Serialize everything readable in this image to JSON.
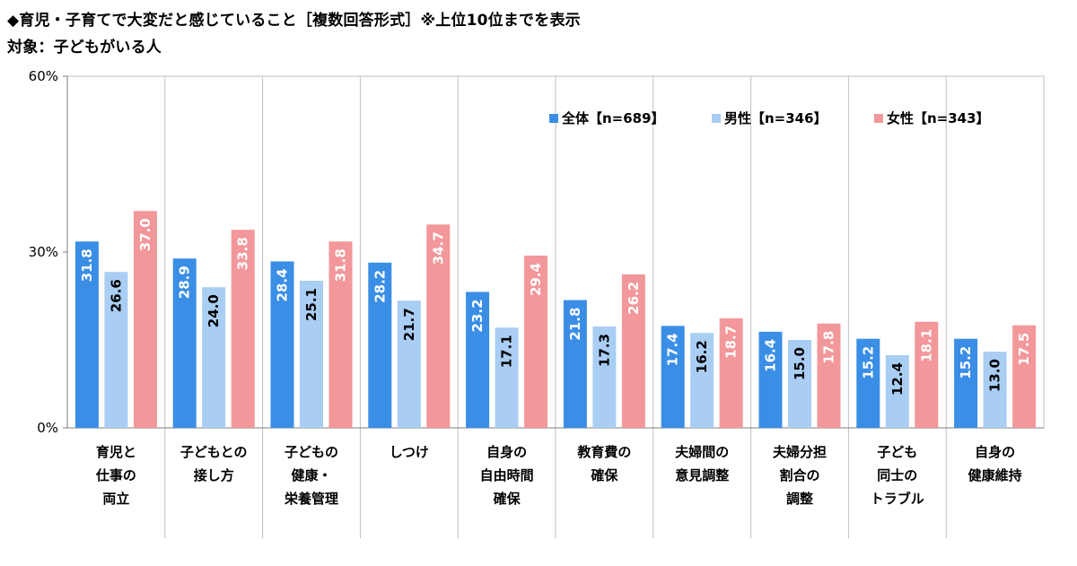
{
  "header": {
    "title": "◆育児・子育てで大変だと感じていること［複数回答形式］※上位10位までを表示",
    "subtitle": "対象：子どもがいる人"
  },
  "colors": {
    "all": "#3a8ee6",
    "male": "#a9cdf3",
    "female": "#f2979a",
    "grid": "#bfbfbf",
    "axis": "#7f7f7f"
  },
  "chart_data": {
    "type": "bar",
    "categories": [
      [
        "育児と",
        "仕事の",
        "両立"
      ],
      [
        "子どもとの",
        "接し方"
      ],
      [
        "子どもの",
        "健康・",
        "栄養管理"
      ],
      [
        "しつけ"
      ],
      [
        "自身の",
        "自由時間",
        "確保"
      ],
      [
        "教育費の",
        "確保"
      ],
      [
        "夫婦間の",
        "意見調整"
      ],
      [
        "夫婦分担",
        "割合の",
        "調整"
      ],
      [
        "子ども",
        "同士の",
        "トラブル"
      ],
      [
        "自身の",
        "健康維持"
      ]
    ],
    "series": [
      {
        "name": "全体【n=689】",
        "color_key": "all",
        "values": [
          31.8,
          28.9,
          28.4,
          28.2,
          23.2,
          21.8,
          17.4,
          16.4,
          15.2,
          15.2
        ]
      },
      {
        "name": "男性【n=346】",
        "color_key": "male",
        "values": [
          26.6,
          24.0,
          25.1,
          21.7,
          17.1,
          17.3,
          16.2,
          15.0,
          12.4,
          13.0
        ]
      },
      {
        "name": "女性【n=343】",
        "color_key": "female",
        "values": [
          37.0,
          33.8,
          31.8,
          34.7,
          29.4,
          26.2,
          18.7,
          17.8,
          18.1,
          17.5
        ]
      }
    ],
    "ylim": [
      0,
      60
    ],
    "yticks": [
      {
        "value": 0,
        "label": "0%"
      },
      {
        "value": 30,
        "label": "30%"
      },
      {
        "value": 60,
        "label": "60%"
      }
    ],
    "legend": "top-right",
    "grid": "vertical-separators"
  }
}
